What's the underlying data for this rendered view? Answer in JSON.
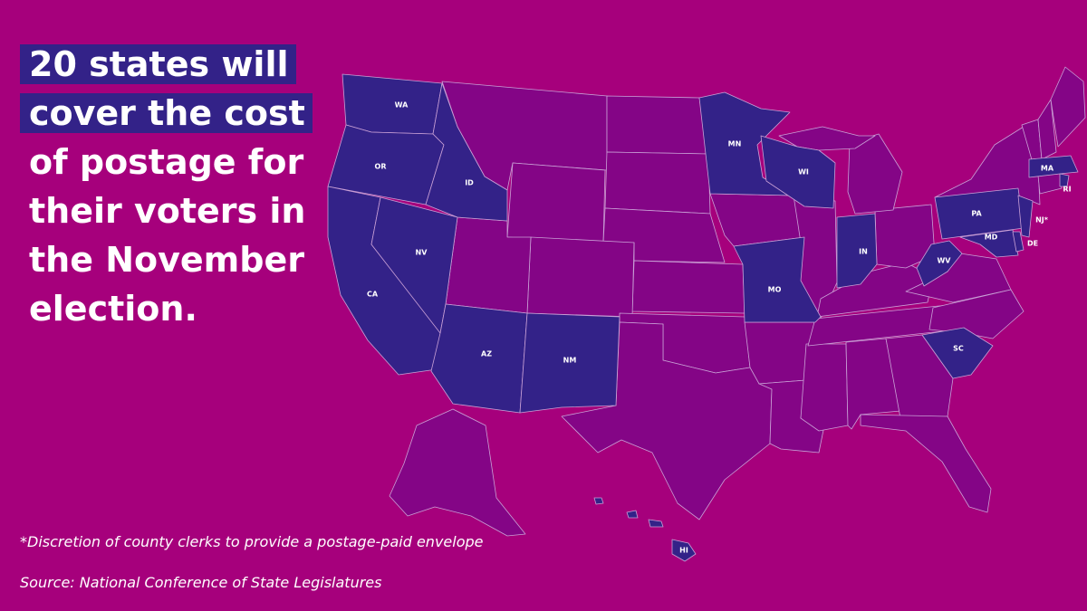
{
  "headline": {
    "lines": [
      "20 states will",
      "cover the cost",
      "of postage for",
      "their voters in",
      "the November",
      "election."
    ]
  },
  "footnote": "*Discretion of county clerks to provide a postage-paid envelope",
  "source": "Source: National Conference of State Legislatures",
  "colors": {
    "background": "#a6007c",
    "covered_state": "#332288",
    "other_state": "#840586",
    "border": "#c9a0d6",
    "headline_box": "#332288"
  },
  "map": {
    "legend_meaning": "highlighted states cover cost of postage",
    "highlighted_state_labels": [
      "WA",
      "OR",
      "ID",
      "CA",
      "NV",
      "AZ",
      "NM",
      "MN",
      "WI",
      "MO",
      "IN",
      "WV",
      "PA",
      "MD",
      "NJ*",
      "DE",
      "MA",
      "RI",
      "SC",
      "HI"
    ]
  }
}
